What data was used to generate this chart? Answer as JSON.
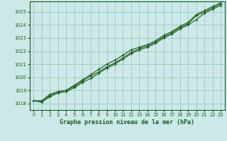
{
  "title": "Graphe pression niveau de la mer (hPa)",
  "bg_color": "#cce8e8",
  "grid_color": "#99ccbb",
  "line_color": "#1a5c1a",
  "x_labels": [
    "0",
    "1",
    "2",
    "3",
    "4",
    "5",
    "6",
    "7",
    "8",
    "9",
    "10",
    "11",
    "12",
    "13",
    "14",
    "15",
    "16",
    "17",
    "18",
    "19",
    "20",
    "21",
    "22",
    "23"
  ],
  "ylim": [
    1017.5,
    1025.8
  ],
  "yticks": [
    1018,
    1019,
    1020,
    1021,
    1022,
    1023,
    1024,
    1025
  ],
  "series1": [
    1018.2,
    1018.2,
    1018.7,
    1018.9,
    1019.0,
    1019.3,
    1019.7,
    1020.1,
    1020.4,
    1020.8,
    1021.1,
    1021.5,
    1021.9,
    1022.2,
    1022.4,
    1022.7,
    1023.1,
    1023.4,
    1023.8,
    1024.1,
    1024.7,
    1025.0,
    1025.3,
    1025.6
  ],
  "series2": [
    1018.2,
    1018.1,
    1018.5,
    1018.8,
    1018.9,
    1019.2,
    1019.6,
    1019.9,
    1020.3,
    1020.7,
    1021.0,
    1021.4,
    1021.8,
    1022.1,
    1022.3,
    1022.6,
    1023.0,
    1023.3,
    1023.7,
    1024.0,
    1024.4,
    1024.9,
    1025.2,
    1025.5
  ],
  "series3": [
    1018.2,
    1018.2,
    1018.6,
    1018.9,
    1019.0,
    1019.4,
    1019.8,
    1020.2,
    1020.6,
    1021.0,
    1021.3,
    1021.7,
    1022.1,
    1022.3,
    1022.5,
    1022.8,
    1023.2,
    1023.5,
    1023.9,
    1024.2,
    1024.8,
    1025.1,
    1025.4,
    1025.7
  ]
}
